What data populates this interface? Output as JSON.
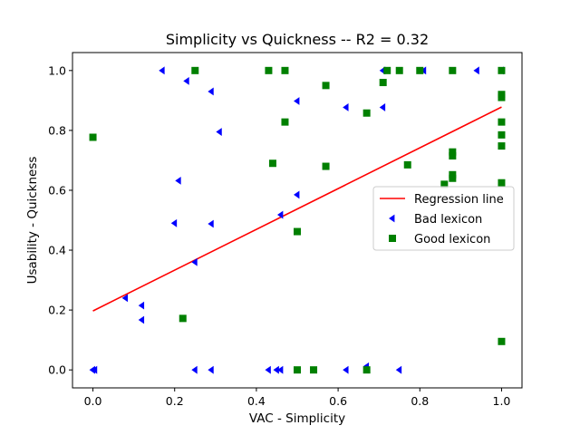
{
  "chart_data": {
    "type": "scatter",
    "title": "Simplicity  vs  Quickness -- R2 = 0.32",
    "xlabel": "VAC - Simplicity",
    "ylabel": "Usability - Quickness",
    "xlim": [
      -0.05,
      1.05
    ],
    "ylim": [
      -0.06,
      1.06
    ],
    "xticks": [
      "0.0",
      "0.2",
      "0.4",
      "0.6",
      "0.8",
      "1.0"
    ],
    "yticks": [
      "0.0",
      "0.2",
      "0.4",
      "0.6",
      "0.8",
      "1.0"
    ],
    "grid": false,
    "legend_position": "center-right",
    "regression": {
      "name": "Regression line",
      "color": "#ff0000",
      "x": [
        0.0,
        1.0
      ],
      "y": [
        0.197,
        0.878
      ]
    },
    "series": [
      {
        "name": "Bad lexicon",
        "marker": "triangle-left",
        "color": "#0000ff",
        "points": [
          [
            0.0,
            0.0
          ],
          [
            0.005,
            0.0
          ],
          [
            0.08,
            0.24
          ],
          [
            0.12,
            0.215
          ],
          [
            0.12,
            0.167
          ],
          [
            0.17,
            1.0
          ],
          [
            0.2,
            0.49
          ],
          [
            0.21,
            0.632
          ],
          [
            0.23,
            0.965
          ],
          [
            0.25,
            0.36
          ],
          [
            0.25,
            0.0
          ],
          [
            0.29,
            0.93
          ],
          [
            0.29,
            0.488
          ],
          [
            0.29,
            0.0
          ],
          [
            0.31,
            0.795
          ],
          [
            0.43,
            0.0
          ],
          [
            0.45,
            0.0
          ],
          [
            0.46,
            0.0
          ],
          [
            0.46,
            0.518
          ],
          [
            0.5,
            0.898
          ],
          [
            0.5,
            0.585
          ],
          [
            0.62,
            0.877
          ],
          [
            0.62,
            0.0
          ],
          [
            0.67,
            0.012
          ],
          [
            0.71,
            1.0
          ],
          [
            0.71,
            0.877
          ],
          [
            0.75,
            0.0
          ],
          [
            0.81,
            1.0
          ],
          [
            0.94,
            1.0
          ],
          [
            1.0,
            1.0
          ]
        ]
      },
      {
        "name": "Good lexicon",
        "marker": "square",
        "color": "#008000",
        "points": [
          [
            0.0,
            0.777
          ],
          [
            0.22,
            0.172
          ],
          [
            0.25,
            1.0
          ],
          [
            0.43,
            1.0
          ],
          [
            0.44,
            0.69
          ],
          [
            0.47,
            1.0
          ],
          [
            0.47,
            0.828
          ],
          [
            0.5,
            0.462
          ],
          [
            0.5,
            0.0
          ],
          [
            0.54,
            0.0
          ],
          [
            0.57,
            0.95
          ],
          [
            0.57,
            0.68
          ],
          [
            0.67,
            0.858
          ],
          [
            0.67,
            0.0
          ],
          [
            0.71,
            0.96
          ],
          [
            0.72,
            1.0
          ],
          [
            0.75,
            1.0
          ],
          [
            0.77,
            0.685
          ],
          [
            0.8,
            1.0
          ],
          [
            0.86,
            0.62
          ],
          [
            0.88,
            1.0
          ],
          [
            0.88,
            0.728
          ],
          [
            0.88,
            0.715
          ],
          [
            0.88,
            0.652
          ],
          [
            0.88,
            0.64
          ],
          [
            1.0,
            1.0
          ],
          [
            1.0,
            0.92
          ],
          [
            1.0,
            0.91
          ],
          [
            1.0,
            0.828
          ],
          [
            1.0,
            0.785
          ],
          [
            1.0,
            0.748
          ],
          [
            1.0,
            0.625
          ],
          [
            1.0,
            0.095
          ]
        ]
      }
    ]
  }
}
